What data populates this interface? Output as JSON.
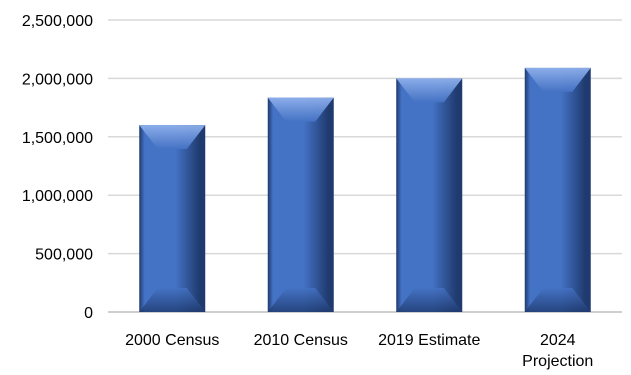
{
  "chart_data": {
    "type": "bar",
    "categories": [
      [
        "2000 Census"
      ],
      [
        "2010 Census"
      ],
      [
        "2019 Estimate"
      ],
      [
        "2024",
        "Projection"
      ]
    ],
    "values": [
      1600000,
      1835000,
      2000000,
      2090000
    ],
    "ylim": [
      0,
      2500000
    ],
    "yticks": [
      {
        "value": 0,
        "label": "0"
      },
      {
        "value": 500000,
        "label": "500,000"
      },
      {
        "value": 1000000,
        "label": "1,000,000"
      },
      {
        "value": 1500000,
        "label": "1,500,000"
      },
      {
        "value": 2000000,
        "label": "2,000,000"
      },
      {
        "value": 2500000,
        "label": "2,500,000"
      }
    ],
    "grid": true,
    "legend": "none",
    "bar_color": "#4472c4",
    "bar_color_dark": "#1f3a6e",
    "bar_color_light": "#8fb0ec"
  }
}
